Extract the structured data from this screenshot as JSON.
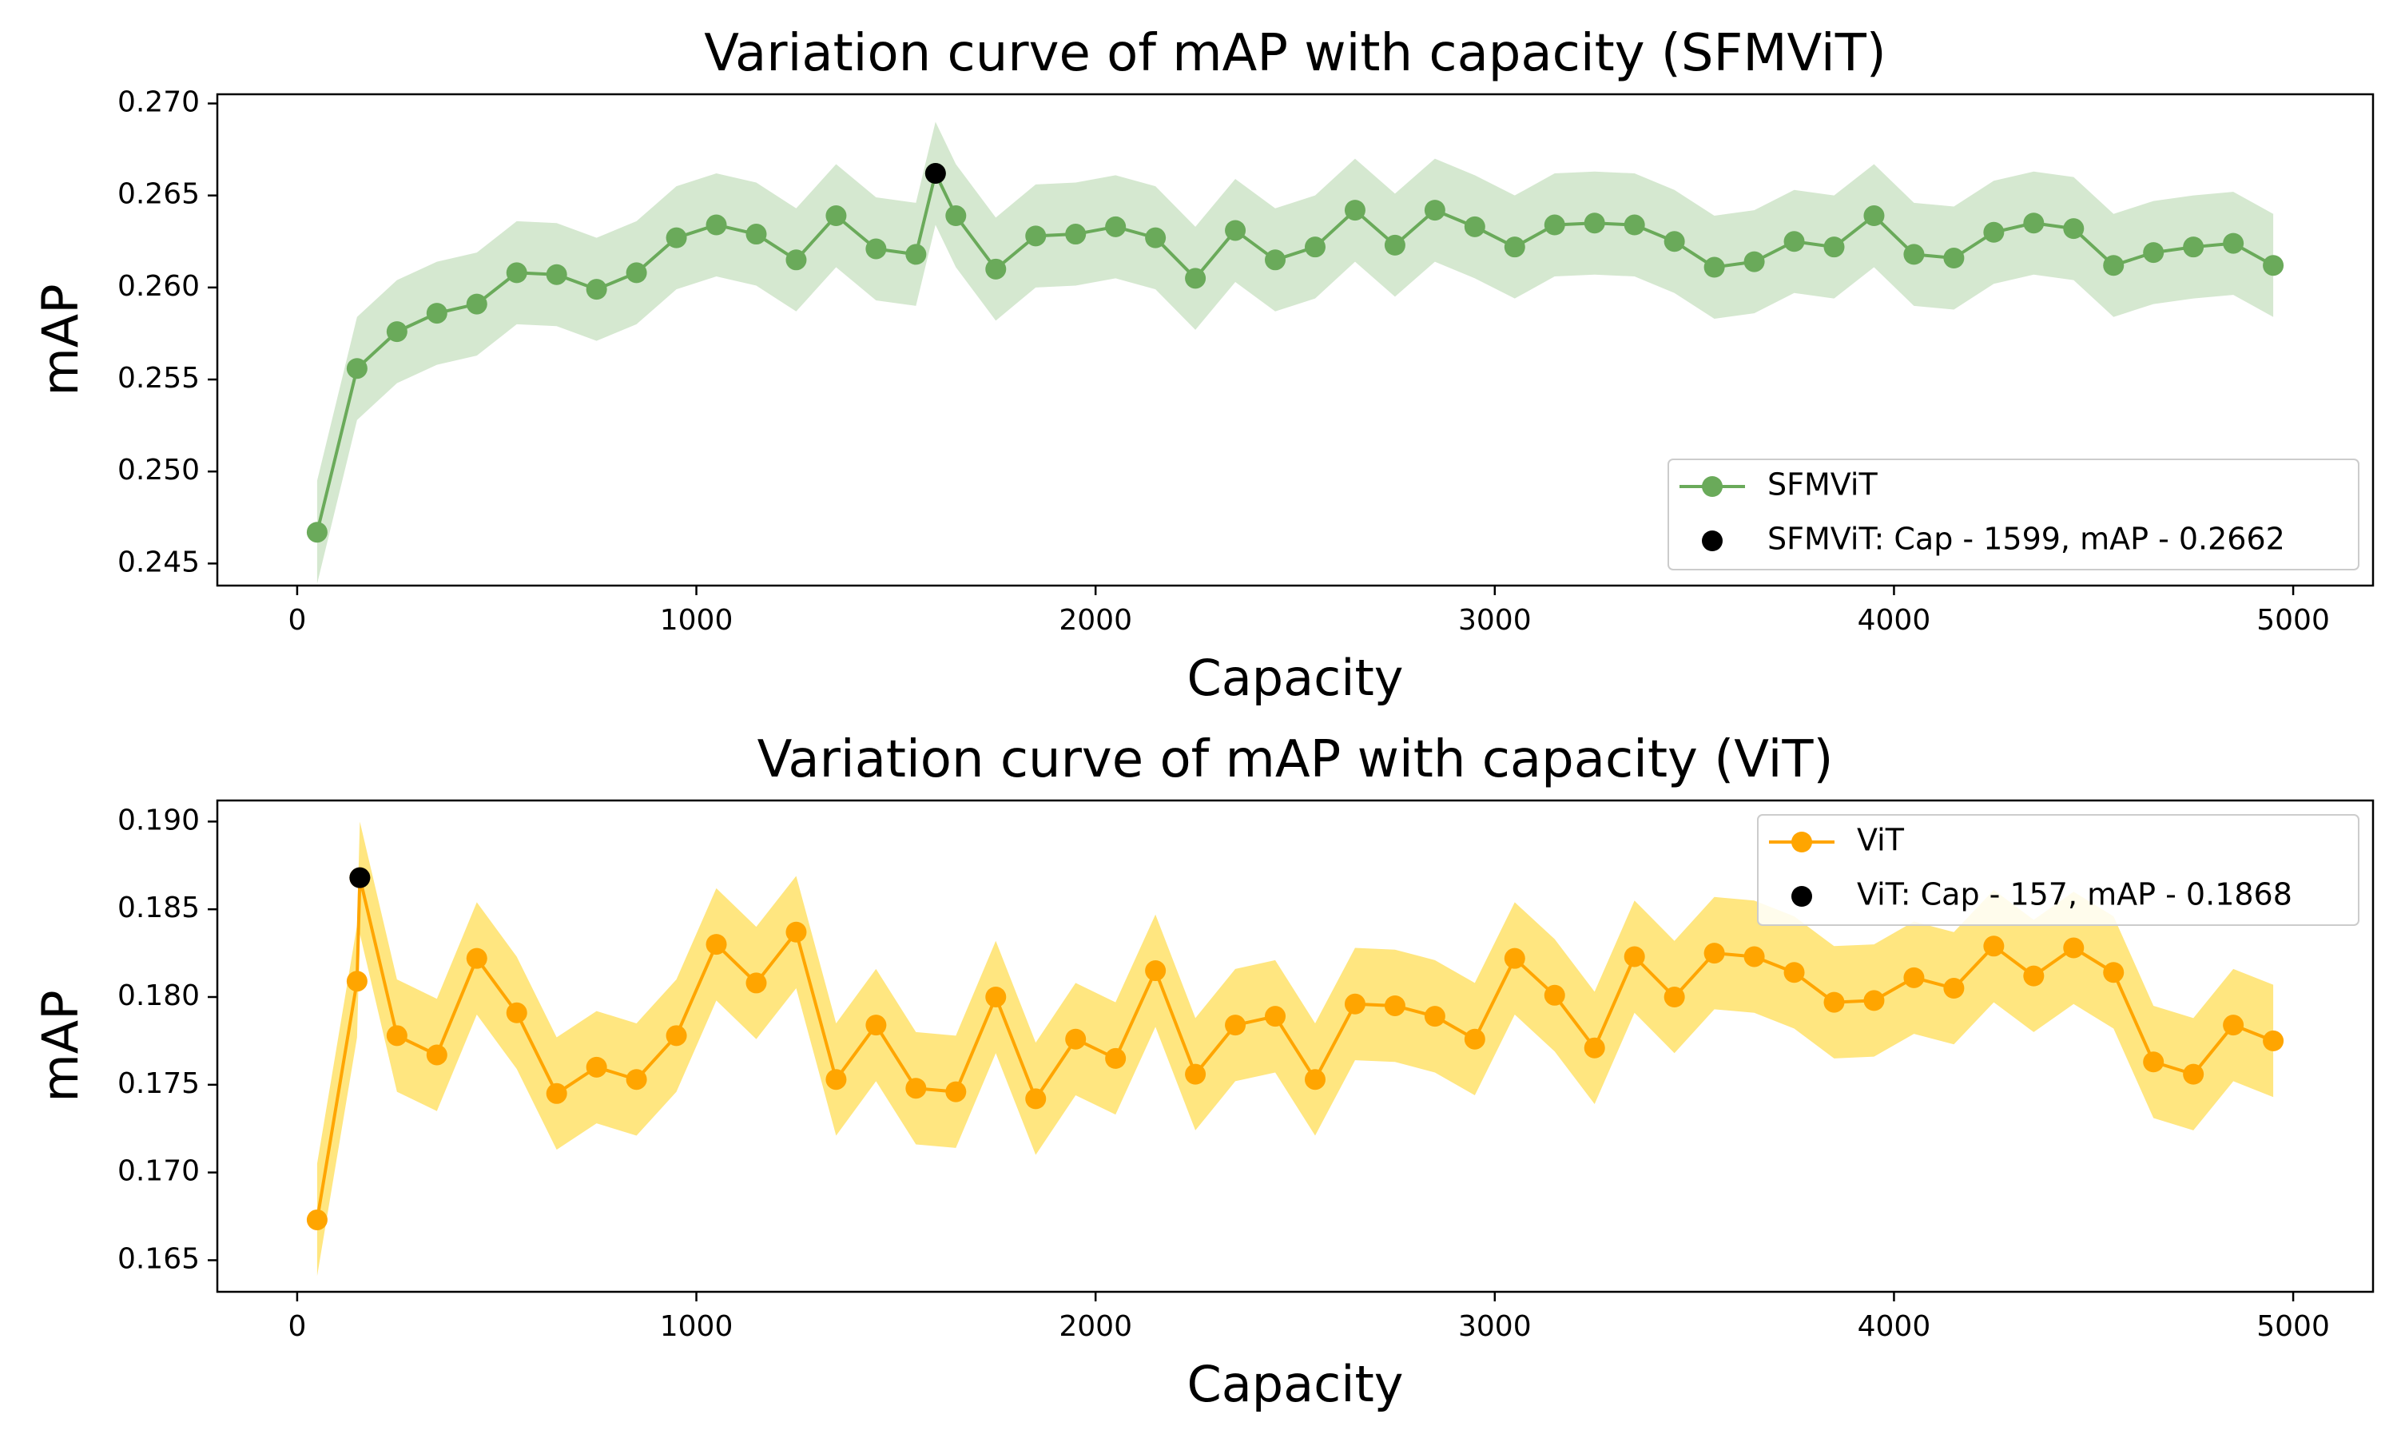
{
  "chart_data": [
    {
      "type": "line",
      "title": "Variation curve of mAP with capacity (SFMViT)",
      "xlabel": "Capacity",
      "ylabel": "mAP",
      "xlim": [
        -200,
        5200
      ],
      "ylim": [
        0.2438,
        0.2705
      ],
      "xticks": [
        0,
        1000,
        2000,
        3000,
        4000,
        5000
      ],
      "xtick_labels": [
        "0",
        "1000",
        "2000",
        "3000",
        "4000",
        "5000"
      ],
      "yticks": [
        0.245,
        0.25,
        0.255,
        0.26,
        0.265,
        0.27
      ],
      "ytick_labels": [
        "0.245",
        "0.250",
        "0.255",
        "0.260",
        "0.265",
        "0.270"
      ],
      "legend_position": "lower-right",
      "band_halfwidth": 0.0028,
      "series": [
        {
          "name": "SFMViT",
          "color": "#6aaa5a",
          "band_color": "#d5e8d0",
          "x": [
            50,
            150,
            250,
            350,
            450,
            550,
            650,
            750,
            850,
            950,
            1050,
            1150,
            1250,
            1350,
            1450,
            1550,
            1599,
            1650,
            1750,
            1850,
            1950,
            2050,
            2150,
            2250,
            2350,
            2450,
            2550,
            2650,
            2750,
            2850,
            2950,
            3050,
            3150,
            3250,
            3350,
            3450,
            3550,
            3650,
            3750,
            3850,
            3950,
            4050,
            4150,
            4250,
            4350,
            4450,
            4550,
            4650,
            4750,
            4850,
            4950
          ],
          "y": [
            0.2467,
            0.2556,
            0.2576,
            0.2586,
            0.2591,
            0.2608,
            0.2607,
            0.2599,
            0.2608,
            0.2627,
            0.2634,
            0.2629,
            0.2615,
            0.2639,
            0.2621,
            0.2618,
            0.2662,
            0.2639,
            0.261,
            0.2628,
            0.2629,
            0.2633,
            0.2627,
            0.2605,
            0.2631,
            0.2615,
            0.2622,
            0.2642,
            0.2623,
            0.2642,
            0.2633,
            0.2622,
            0.2634,
            0.2635,
            0.2634,
            0.2625,
            0.2611,
            0.2614,
            0.2625,
            0.2622,
            0.2639,
            0.2618,
            0.2616,
            0.263,
            0.2635,
            0.2632,
            0.2612,
            0.2619,
            0.2622,
            0.2624,
            0.2612
          ]
        },
        {
          "name": "SFMViT: Cap - 1599, mAP - 0.2662",
          "kind": "marker",
          "color": "#000000",
          "x": [
            1599
          ],
          "y": [
            0.2662
          ]
        }
      ]
    },
    {
      "type": "line",
      "title": "Variation curve of mAP with capacity (ViT)",
      "xlabel": "Capacity",
      "ylabel": "mAP",
      "xlim": [
        -200,
        5200
      ],
      "ylim": [
        0.1632,
        0.1912
      ],
      "xticks": [
        0,
        1000,
        2000,
        3000,
        4000,
        5000
      ],
      "xtick_labels": [
        "0",
        "1000",
        "2000",
        "3000",
        "4000",
        "5000"
      ],
      "yticks": [
        0.165,
        0.17,
        0.175,
        0.18,
        0.185,
        0.19
      ],
      "ytick_labels": [
        "0.165",
        "0.170",
        "0.175",
        "0.180",
        "0.185",
        "0.190"
      ],
      "legend_position": "upper-right",
      "band_halfwidth": 0.0032,
      "series": [
        {
          "name": "ViT",
          "color": "#ffa500",
          "band_color": "#ffe680",
          "x": [
            50,
            150,
            157,
            250,
            350,
            450,
            550,
            650,
            750,
            850,
            950,
            1050,
            1150,
            1250,
            1350,
            1450,
            1550,
            1650,
            1750,
            1850,
            1950,
            2050,
            2150,
            2250,
            2350,
            2450,
            2550,
            2650,
            2750,
            2850,
            2950,
            3050,
            3150,
            3250,
            3350,
            3450,
            3550,
            3650,
            3750,
            3850,
            3950,
            4050,
            4150,
            4250,
            4350,
            4450,
            4550,
            4650,
            4750,
            4850,
            4950
          ],
          "y": [
            0.1673,
            0.1809,
            0.1868,
            0.1778,
            0.1767,
            0.1822,
            0.1791,
            0.1745,
            0.176,
            0.1753,
            0.1778,
            0.183,
            0.1808,
            0.1837,
            0.1753,
            0.1784,
            0.1748,
            0.1746,
            0.18,
            0.1742,
            0.1776,
            0.1765,
            0.1815,
            0.1756,
            0.1784,
            0.1789,
            0.1753,
            0.1796,
            0.1795,
            0.1789,
            0.1776,
            0.1822,
            0.1801,
            0.1771,
            0.1823,
            0.18,
            0.1825,
            0.1823,
            0.1814,
            0.1797,
            0.1798,
            0.1811,
            0.1805,
            0.1829,
            0.1812,
            0.1828,
            0.1814,
            0.1763,
            0.1756,
            0.1784,
            0.1775
          ]
        },
        {
          "name": "ViT: Cap - 157, mAP - 0.1868",
          "kind": "marker",
          "color": "#000000",
          "x": [
            157
          ],
          "y": [
            0.1868
          ]
        }
      ]
    }
  ]
}
